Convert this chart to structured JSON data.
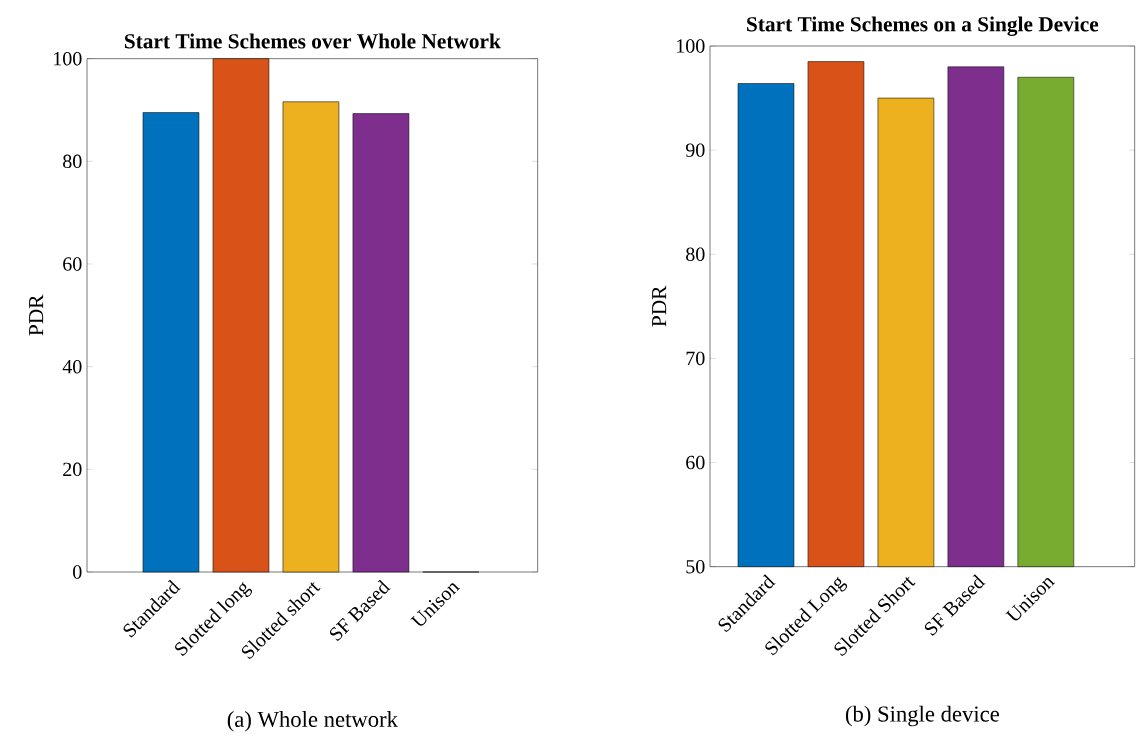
{
  "chart_data": [
    {
      "type": "bar",
      "title": "Start Time Schemes over Whole Network",
      "ylabel": "PDR",
      "categories": [
        "Standard",
        "Slotted long",
        "Slotted short",
        "SF Based",
        "Unison"
      ],
      "values": [
        89.5,
        100,
        91.6,
        89.3,
        0
      ],
      "colors": [
        "#0072bd",
        "#d95319",
        "#edb120",
        "#7e2f8e",
        "#77ac30"
      ],
      "ylim": [
        0,
        100
      ],
      "yticks": [
        0,
        20,
        40,
        60,
        80,
        100
      ],
      "annotations": [
        "(a) Whole network"
      ]
    },
    {
      "type": "bar",
      "title": "Start Time Schemes on a Single Device",
      "ylabel": "PDR",
      "categories": [
        "Standard",
        "Slotted Long",
        "Slotted Short",
        "SF Based",
        "Unison"
      ],
      "values": [
        96.4,
        98.5,
        95.0,
        98.0,
        97.0
      ],
      "colors": [
        "#0072bd",
        "#d95319",
        "#edb120",
        "#7e2f8e",
        "#77ac30"
      ],
      "ylim": [
        50,
        100
      ],
      "yticks": [
        50,
        60,
        70,
        80,
        90,
        100
      ],
      "annotations": [
        "(b) Single device"
      ]
    }
  ]
}
